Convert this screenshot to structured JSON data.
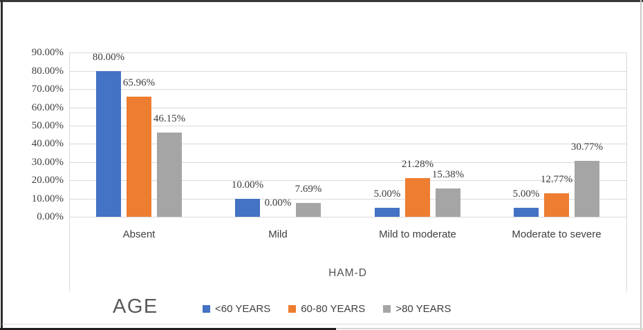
{
  "chart_data": {
    "type": "bar",
    "title": "",
    "categories": [
      "Absent",
      "Mild",
      "Mild to moderate",
      "Moderate to severe"
    ],
    "series": [
      {
        "name": "<60 YEARS",
        "color": "#4472C4",
        "values": [
          80.0,
          10.0,
          5.0,
          5.0
        ],
        "labels": [
          "80.00%",
          "10.00%",
          "5.00%",
          "5.00%"
        ]
      },
      {
        "name": "60-80 YEARS",
        "color": "#ED7D31",
        "values": [
          65.96,
          0.0,
          21.28,
          12.77
        ],
        "labels": [
          "65.96%",
          "0.00%",
          "21.28%",
          "12.77%"
        ]
      },
      {
        "name": ">80 YEARS",
        "color": "#A5A5A5",
        "values": [
          46.15,
          7.69,
          15.38,
          30.77
        ],
        "labels": [
          "46.15%",
          "7.69%",
          "15.38%",
          "30.77%"
        ]
      }
    ],
    "xlabel": "HAM-D",
    "ylabel": "",
    "ylim": [
      0,
      90
    ],
    "ytick_step": 10,
    "ytick_labels": [
      "0.00%",
      "10.00%",
      "20.00%",
      "30.00%",
      "40.00%",
      "50.00%",
      "60.00%",
      "70.00%",
      "80.00%",
      "90.00%"
    ],
    "grid": true,
    "data_labels_shown": true,
    "legend_position": "bottom"
  },
  "axis_footer": {
    "age_label": "AGE"
  },
  "theme": {
    "background": "#FFFFFF",
    "grid_color": "#D9D9D9",
    "text_color": "#404040",
    "muted_text_color": "#595959",
    "series_blue": "#4472C4",
    "series_orange": "#ED7D31",
    "series_gray": "#A5A5A5"
  }
}
